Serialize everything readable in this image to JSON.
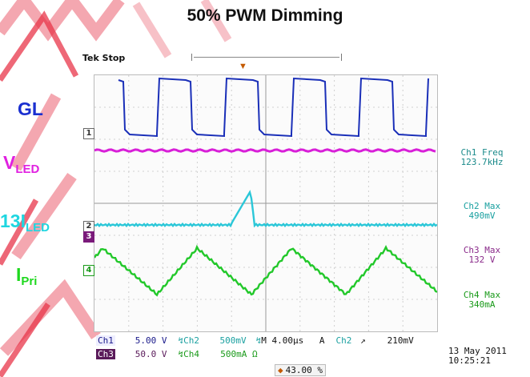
{
  "page": {
    "title": "50% PWM Dimming"
  },
  "signal_labels": {
    "gl": "GL",
    "vled_main": "V",
    "vled_sub": "LED",
    "iled_main": "13I",
    "iled_sub": "LED",
    "ipri_main": "I",
    "ipri_sub": "Pri"
  },
  "scope": {
    "status": "Tek Stop",
    "channel_markers": {
      "ch1": "1",
      "ch2": "2",
      "ch3": "3",
      "ch4": "4"
    },
    "measurements": [
      {
        "label": "Ch1 Freq",
        "value": "123.7kHz",
        "color": "#1aa0a0"
      },
      {
        "label": "Ch2 Max",
        "value": "490mV",
        "color": "#1aa0a0"
      },
      {
        "label": "Ch3 Max",
        "value": "132 V",
        "color": "#8a2a8a"
      },
      {
        "label": "Ch4 Max",
        "value": "340mA",
        "color": "#1a9a1a"
      }
    ],
    "settings": {
      "row1": {
        "ch1": "Ch1",
        "ch1_scale": "5.00 V",
        "ch2": "Ch2",
        "ch2_scale": "500mV",
        "timebase": "M 4.00µs",
        "trigger_mode": "A",
        "trigger_src": "Ch2",
        "trigger_slope": "↗",
        "trigger_level": "210mV"
      },
      "row2": {
        "ch3": "Ch3",
        "ch3_scale": "50.0 V",
        "ch4": "Ch4",
        "ch4_scale": "500mA Ω"
      }
    },
    "date": "13 May 2011",
    "time": "10:25:21",
    "trigger_position": "43.00 %",
    "colors": {
      "ch1": "#1a2fb8",
      "ch2": "#2bc7d8",
      "ch3": "#d81fd8",
      "ch4": "#22c82a"
    }
  },
  "colors": {
    "gl": "#1a2fd0",
    "vled": "#e020e0",
    "iled": "#1fd6e0",
    "ipri": "#1ed81e",
    "watermark": "#e8354a"
  }
}
